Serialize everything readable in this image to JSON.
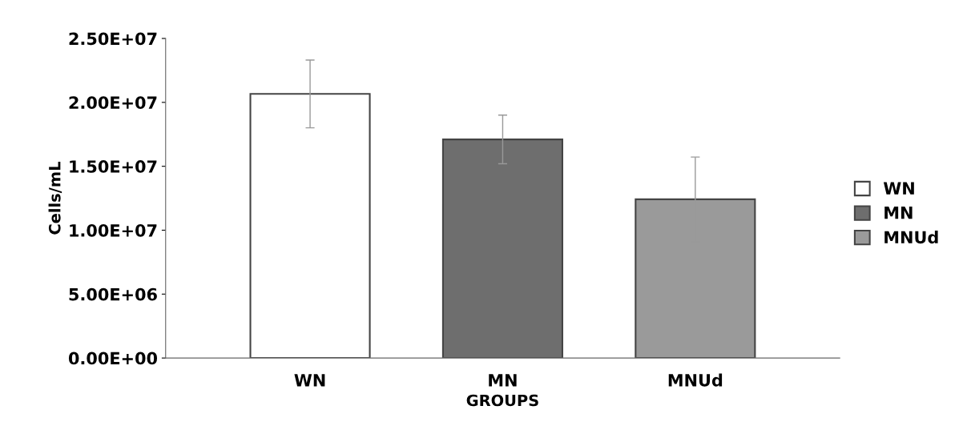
{
  "chart_data": {
    "type": "bar",
    "xlabel": "GROUPS",
    "ylabel": "Cells/mL",
    "categories": [
      "WN",
      "MN",
      "MNUd"
    ],
    "series": [
      {
        "name": "WN",
        "color": "#ffffff",
        "values": [
          20660000,
          null,
          null
        ],
        "errors": [
          2650000,
          null,
          null
        ]
      },
      {
        "name": "MN",
        "color": "#6e6e6e",
        "values": [
          null,
          17100000,
          null
        ],
        "errors": [
          null,
          1900000,
          null
        ]
      },
      {
        "name": "MNUd",
        "color": "#9a9a9a",
        "values": [
          null,
          null,
          12420000
        ],
        "errors": [
          null,
          null,
          3300000
        ]
      }
    ],
    "ylim": [
      0,
      25000000
    ],
    "yticks": [
      {
        "value": 0,
        "label": "0.00E+00"
      },
      {
        "value": 5000000,
        "label": "5.00E+06"
      },
      {
        "value": 10000000,
        "label": "1.00E+07"
      },
      {
        "value": 15000000,
        "label": "1.50E+07"
      },
      {
        "value": 20000000,
        "label": "2.00E+07"
      },
      {
        "value": 25000000,
        "label": "2.50E+07"
      }
    ],
    "grid": false,
    "legend": "right"
  }
}
